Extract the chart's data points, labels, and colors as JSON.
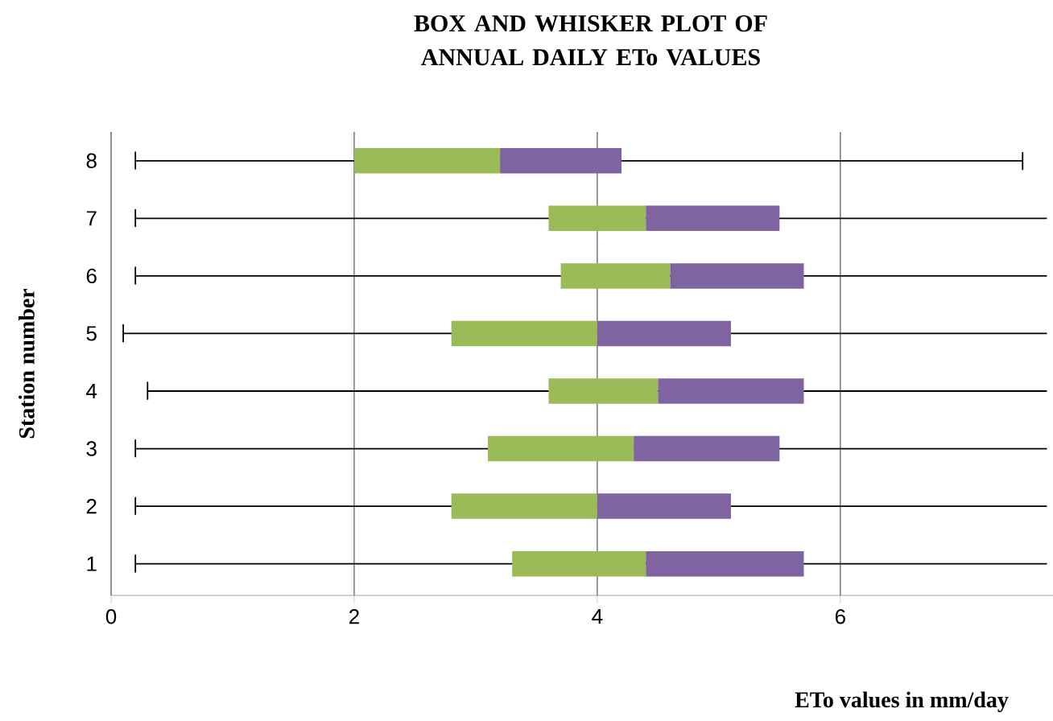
{
  "chart_data": {
    "type": "box",
    "orientation": "horizontal",
    "title": "BOX AND WHISKER PLOT OF ANNUAL DAILY ETo VALUES",
    "xlabel": "ETo values in mm/day",
    "ylabel": "Station number",
    "categories": [
      "8",
      "7",
      "6",
      "5",
      "4",
      "3",
      "2",
      "1"
    ],
    "boxes": [
      {
        "low": 0.2,
        "q1": 2.0,
        "median": 3.2,
        "q3": 4.2,
        "high": 7.5
      },
      {
        "low": 0.2,
        "q1": 3.6,
        "median": 4.4,
        "q3": 5.5,
        "high": 7.7
      },
      {
        "low": 0.2,
        "q1": 3.7,
        "median": 4.6,
        "q3": 5.7,
        "high": 7.7
      },
      {
        "low": 0.1,
        "q1": 2.8,
        "median": 4.0,
        "q3": 5.1,
        "high": 7.7
      },
      {
        "low": 0.3,
        "q1": 3.6,
        "median": 4.5,
        "q3": 5.7,
        "high": 7.7
      },
      {
        "low": 0.2,
        "q1": 3.1,
        "median": 4.3,
        "q3": 5.5,
        "high": 7.7
      },
      {
        "low": 0.2,
        "q1": 2.8,
        "median": 4.0,
        "q3": 5.1,
        "high": 7.7
      },
      {
        "low": 0.2,
        "q1": 3.3,
        "median": 4.4,
        "q3": 5.7,
        "high": 7.7
      }
    ],
    "colors": [
      [
        "#9bbb59",
        "#8064a2"
      ],
      [
        "#9bbb59",
        "#8064a2"
      ],
      [
        "#9bbb59",
        "#8064a2"
      ],
      [
        "#9bbb59",
        "#8064a2"
      ],
      [
        "#9bbb59",
        "#8064a2"
      ],
      [
        "#9bbb59",
        "#8064a2"
      ],
      [
        "#9bbb59",
        "#8064a2"
      ],
      [
        "#9bbb59",
        "#8064a2"
      ]
    ],
    "xlim": [
      0,
      7.75
    ],
    "xticks": [
      0,
      2,
      4,
      6
    ],
    "grid": "x"
  }
}
